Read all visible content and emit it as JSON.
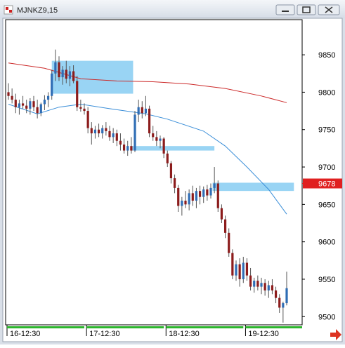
{
  "window_title": "MJNKZ9,15",
  "chart_data": {
    "type": "candlestick",
    "categories": [
      "16-12:30",
      null,
      null,
      null,
      null,
      null,
      null,
      null,
      null,
      null,
      null,
      null,
      null,
      null,
      null,
      null,
      null,
      null,
      null,
      null,
      null,
      null,
      "17-12:30",
      null,
      null,
      null,
      null,
      null,
      null,
      null,
      null,
      null,
      null,
      null,
      null,
      null,
      null,
      null,
      null,
      null,
      null,
      null,
      null,
      null,
      "18-12:30",
      null,
      null,
      null,
      null,
      null,
      null,
      null,
      null,
      null,
      null,
      null,
      null,
      null,
      null,
      null,
      null,
      null,
      null,
      null,
      null,
      null,
      "19-12:30",
      null,
      null,
      null,
      null,
      null,
      null,
      null,
      null,
      null,
      null,
      null
    ],
    "ohlc": [
      [
        9800,
        9812,
        9790,
        9795
      ],
      [
        9795,
        9805,
        9785,
        9790
      ],
      [
        9790,
        9798,
        9772,
        9780
      ],
      [
        9780,
        9790,
        9770,
        9785
      ],
      [
        9785,
        9795,
        9778,
        9782
      ],
      [
        9782,
        9790,
        9772,
        9778
      ],
      [
        9778,
        9792,
        9770,
        9788
      ],
      [
        9788,
        9795,
        9775,
        9780
      ],
      [
        9780,
        9790,
        9765,
        9772
      ],
      [
        9772,
        9786,
        9768,
        9784
      ],
      [
        9784,
        9796,
        9776,
        9790
      ],
      [
        9790,
        9800,
        9780,
        9795
      ],
      [
        9795,
        9830,
        9790,
        9825
      ],
      [
        9825,
        9857,
        9815,
        9840
      ],
      [
        9840,
        9848,
        9815,
        9820
      ],
      [
        9820,
        9835,
        9810,
        9830
      ],
      [
        9830,
        9842,
        9812,
        9818
      ],
      [
        9818,
        9835,
        9808,
        9828
      ],
      [
        9828,
        9836,
        9812,
        9815
      ],
      [
        9815,
        9822,
        9775,
        9780
      ],
      [
        9780,
        9790,
        9774,
        9778
      ],
      [
        9778,
        9785,
        9770,
        9775
      ],
      [
        9775,
        9780,
        9745,
        9752
      ],
      [
        9752,
        9760,
        9730,
        9745
      ],
      [
        9745,
        9755,
        9738,
        9750
      ],
      [
        9750,
        9758,
        9740,
        9745
      ],
      [
        9745,
        9756,
        9738,
        9752
      ],
      [
        9752,
        9760,
        9742,
        9748
      ],
      [
        9748,
        9755,
        9735,
        9740
      ],
      [
        9740,
        9752,
        9732,
        9745
      ],
      [
        9745,
        9750,
        9728,
        9735
      ],
      [
        9735,
        9745,
        9722,
        9730
      ],
      [
        9730,
        9738,
        9718,
        9722
      ],
      [
        9722,
        9735,
        9715,
        9728
      ],
      [
        9728,
        9740,
        9718,
        9722
      ],
      [
        9722,
        9775,
        9720,
        9770
      ],
      [
        9770,
        9790,
        9760,
        9780
      ],
      [
        9780,
        9788,
        9765,
        9772
      ],
      [
        9772,
        9795,
        9768,
        9778
      ],
      [
        9778,
        9782,
        9740,
        9745
      ],
      [
        9745,
        9755,
        9735,
        9740
      ],
      [
        9740,
        9748,
        9728,
        9735
      ],
      [
        9735,
        9742,
        9725,
        9738
      ],
      [
        9738,
        9740,
        9712,
        9718
      ],
      [
        9718,
        9722,
        9700,
        9705
      ],
      [
        9705,
        9708,
        9678,
        9685
      ],
      [
        9685,
        9690,
        9665,
        9672
      ],
      [
        9672,
        9676,
        9640,
        9648
      ],
      [
        9648,
        9660,
        9635,
        9655
      ],
      [
        9655,
        9668,
        9645,
        9650
      ],
      [
        9650,
        9670,
        9642,
        9665
      ],
      [
        9665,
        9675,
        9648,
        9655
      ],
      [
        9655,
        9672,
        9645,
        9668
      ],
      [
        9668,
        9675,
        9650,
        9660
      ],
      [
        9660,
        9674,
        9652,
        9670
      ],
      [
        9670,
        9676,
        9655,
        9662
      ],
      [
        9662,
        9678,
        9658,
        9672
      ],
      [
        9672,
        9700,
        9665,
        9678
      ],
      [
        9678,
        9682,
        9640,
        9645
      ],
      [
        9645,
        9650,
        9625,
        9630
      ],
      [
        9630,
        9635,
        9605,
        9612
      ],
      [
        9612,
        9618,
        9580,
        9585
      ],
      [
        9585,
        9590,
        9550,
        9555
      ],
      [
        9555,
        9575,
        9548,
        9570
      ],
      [
        9570,
        9578,
        9540,
        9550
      ],
      [
        9550,
        9580,
        9545,
        9572
      ],
      [
        9572,
        9578,
        9548,
        9555
      ],
      [
        9555,
        9565,
        9535,
        9540
      ],
      [
        9540,
        9552,
        9532,
        9548
      ],
      [
        9548,
        9555,
        9535,
        9540
      ],
      [
        9540,
        9552,
        9530,
        9545
      ],
      [
        9545,
        9550,
        9528,
        9535
      ],
      [
        9535,
        9548,
        9525,
        9542
      ],
      [
        9542,
        9550,
        9530,
        9535
      ],
      [
        9535,
        9540,
        9518,
        9525
      ],
      [
        9525,
        9530,
        9505,
        9512
      ],
      [
        9512,
        9520,
        9492,
        9518
      ],
      [
        9518,
        9560,
        9515,
        9538
      ]
    ],
    "up_color": "#2f6db5",
    "down_color": "#8c1c1c",
    "lines": [
      {
        "color": "#cc2a2a",
        "x": [
          0,
          10,
          20,
          30,
          40,
          50,
          60,
          70,
          77
        ],
        "values": [
          9839,
          9832,
          9818,
          9815,
          9814,
          9811,
          9805,
          9795,
          9786
        ]
      },
      {
        "color": "#3a8ed8",
        "x": [
          0,
          8,
          14,
          20,
          28,
          38,
          44,
          54,
          60,
          66,
          72,
          77
        ],
        "values": [
          9784,
          9771,
          9780,
          9784,
          9778,
          9771,
          9764,
          9748,
          9728,
          9700,
          9670,
          9637
        ]
      }
    ],
    "zones": [
      {
        "from": 12,
        "to": 34.5,
        "high": 9842,
        "low": 9798
      },
      {
        "from": 34,
        "to": 57,
        "high": 9728,
        "low": 9722
      },
      {
        "from": 56.5,
        "to": 79,
        "high": 9679,
        "low": 9668
      }
    ],
    "zone_color": "#87cdf2",
    "last_price": 9678,
    "last_price_color": "#e02020",
    "ylim": [
      9489,
      9897
    ],
    "yticks": [
      9500,
      9550,
      9600,
      9650,
      9700,
      9750,
      9800,
      9850
    ],
    "grid": false
  }
}
